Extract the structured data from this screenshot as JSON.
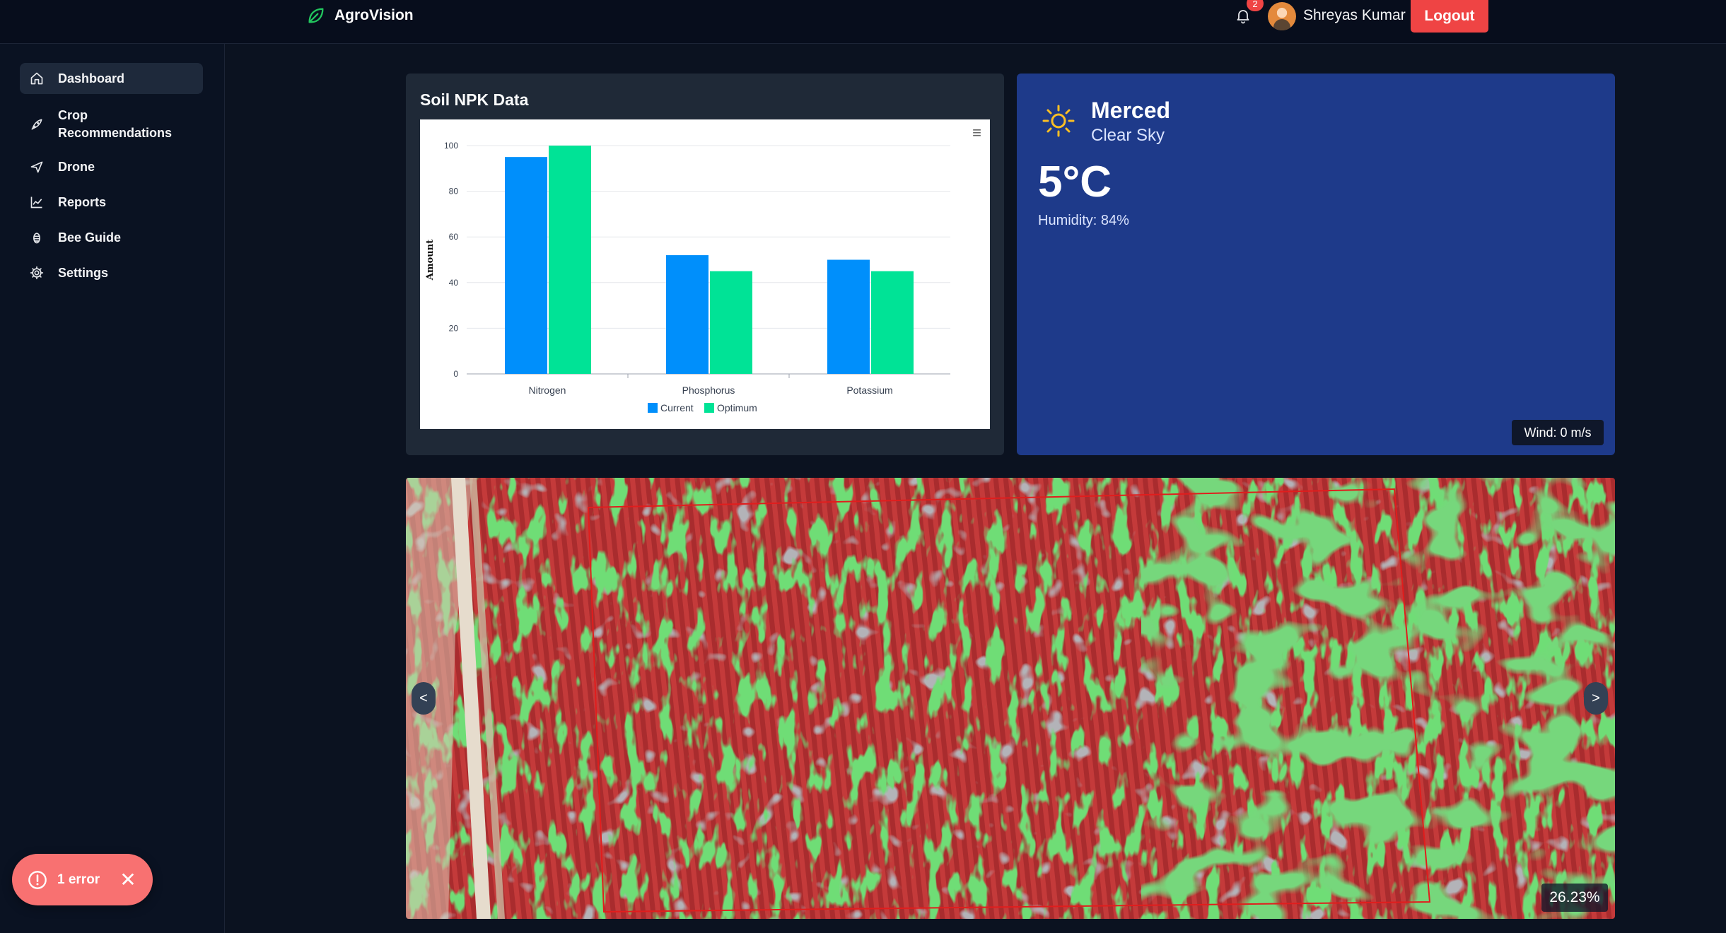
{
  "header": {
    "brand": "AgroVision",
    "notification_count": "2",
    "user_name": "Shreyas Kumar",
    "logout_label": "Logout"
  },
  "sidebar": {
    "items": [
      {
        "label": "Dashboard",
        "icon": "home-icon",
        "active": true
      },
      {
        "label": "Crop\nRecommendations",
        "icon": "rocket-icon",
        "active": false
      },
      {
        "label": "Drone",
        "icon": "plane-icon",
        "active": false
      },
      {
        "label": "Reports",
        "icon": "chart-icon",
        "active": false
      },
      {
        "label": "Bee Guide",
        "icon": "bee-icon",
        "active": false
      },
      {
        "label": "Settings",
        "icon": "gear-icon",
        "active": false
      }
    ]
  },
  "error_toast": {
    "label": "1 error"
  },
  "soil_card": {
    "title": "Soil NPK Data"
  },
  "chart_data": {
    "type": "bar",
    "categories": [
      "Nitrogen",
      "Phosphorus",
      "Potassium"
    ],
    "series": [
      {
        "name": "Current",
        "values": [
          95,
          52,
          50
        ],
        "color": "#008ffb"
      },
      {
        "name": "Optimum",
        "values": [
          100,
          45,
          45
        ],
        "color": "#00e396"
      }
    ],
    "ylabel": "Amount",
    "ylim": [
      0,
      100
    ],
    "yticks": [
      0,
      20,
      40,
      60,
      80,
      100
    ],
    "grid": true,
    "legend": "bottom-center"
  },
  "weather": {
    "city": "Merced",
    "condition": "Clear Sky",
    "temperature": "5°C",
    "humidity": "Humidity: 84%",
    "wind": "Wind: 0 m/s"
  },
  "field_map": {
    "coverage": "26.23%",
    "prev_label": "<",
    "next_label": ">"
  },
  "colors": {
    "accent_red": "#ef4444",
    "weather_bg": "#1e3a8a",
    "healthy": "#22c55e",
    "stressed": "#dc2626"
  }
}
